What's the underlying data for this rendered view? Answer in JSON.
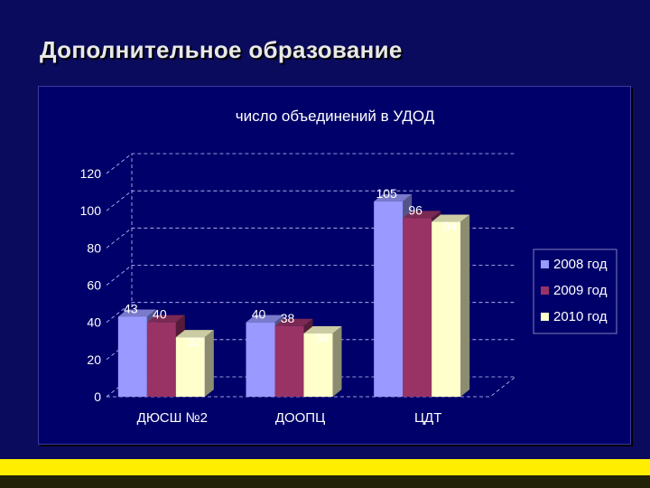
{
  "slide": {
    "title": "Дополнительное образование"
  },
  "colors": {
    "background": "#0b0b5e",
    "chart_area": "#00006a",
    "band_top": "#ffee00",
    "band_bottom": "#23230a"
  },
  "chart_data": {
    "type": "bar",
    "title": "число объединений в УДОД",
    "categories": [
      "ДЮСШ №2",
      "ДООПЦ",
      "ЦДТ"
    ],
    "series": [
      {
        "name": "2008 год",
        "values": [
          43,
          40,
          105
        ],
        "color": "#9999ff"
      },
      {
        "name": "2009 год",
        "values": [
          40,
          38,
          96
        ],
        "color": "#993366"
      },
      {
        "name": "2010 год",
        "values": [
          32,
          34,
          94
        ],
        "color": "#ffffcc"
      }
    ],
    "ylim": [
      0,
      120
    ],
    "yticks": [
      0,
      20,
      40,
      60,
      80,
      100,
      120
    ],
    "grid": true,
    "legend": "right",
    "three_d": true
  }
}
